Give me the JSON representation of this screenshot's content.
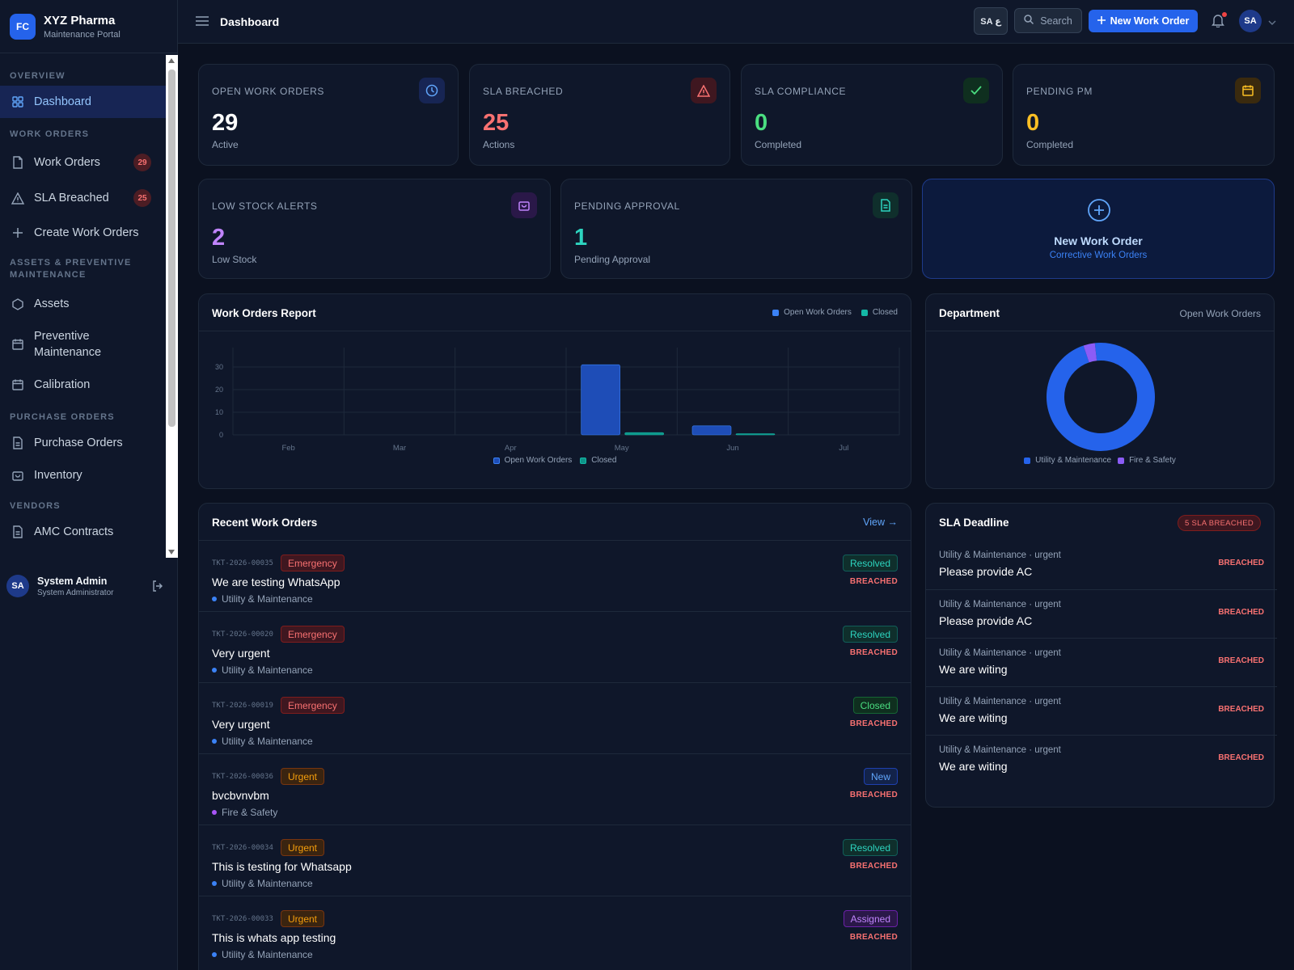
{
  "brand": {
    "logo": "FC",
    "name": "XYZ Pharma",
    "subtitle": "Maintenance Portal"
  },
  "sidebar": {
    "sections": {
      "overview": "OVERVIEW",
      "work_orders": "WORK ORDERS",
      "assets_line1": "ASSETS & PREVENTIVE",
      "assets_line2": "MAINTENANCE",
      "purchase_orders": "PURCHASE ORDERS",
      "vendors": "VENDORS"
    },
    "items": {
      "dashboard": "Dashboard",
      "work_orders": "Work Orders",
      "work_orders_badge": "29",
      "sla_breached": "SLA Breached",
      "sla_breached_badge": "25",
      "create_work_orders": "Create Work Orders",
      "assets": "Assets",
      "preventive_line1": "Preventive",
      "preventive_line2": "Maintenance",
      "calibration": "Calibration",
      "purchase_orders": "Purchase Orders",
      "inventory": "Inventory",
      "amc_contracts": "AMC Contracts"
    },
    "user": {
      "initials": "SA",
      "name": "System Admin",
      "role": "System Administrator"
    }
  },
  "header": {
    "title": "Dashboard",
    "lang": "SA ع",
    "search": "Search",
    "new_work_order": "New Work Order",
    "avatar": "SA"
  },
  "stats": {
    "open_work_orders": {
      "label": "OPEN WORK ORDERS",
      "value": "29",
      "sub": "Active",
      "color": "#ffffff"
    },
    "sla_breached": {
      "label": "SLA BREACHED",
      "value": "25",
      "sub": "Actions",
      "color": "#f87171"
    },
    "sla_compliance": {
      "label": "SLA COMPLIANCE",
      "value": "0",
      "sub": "Completed",
      "color": "#4ade80"
    },
    "pending_pm": {
      "label": "PENDING PM",
      "value": "0",
      "sub": "Completed",
      "color": "#fbbf24"
    },
    "low_stock": {
      "label": "LOW STOCK ALERTS",
      "value": "2",
      "sub": "Low Stock",
      "color": "#c084fc"
    },
    "pending_approval": {
      "label": "PENDING APPROVAL",
      "value": "1",
      "sub": "Pending Approval",
      "color": "#2dd4bf"
    }
  },
  "quick_action": {
    "title": "New Work Order",
    "subtitle": "Corrective Work Orders"
  },
  "report": {
    "title": "Work Orders Report",
    "legend_open": "Open Work Orders",
    "legend_closed": "Closed"
  },
  "chart_data": [
    {
      "type": "bar",
      "title": "Work Orders Report",
      "categories": [
        "Feb",
        "Mar",
        "Apr",
        "May",
        "Jun",
        "Jul"
      ],
      "series": [
        {
          "name": "Open Work Orders",
          "values": [
            0,
            0,
            0,
            31,
            4,
            0
          ],
          "color": "#1e4db7"
        },
        {
          "name": "Closed",
          "values": [
            0,
            0,
            0,
            1,
            0.5,
            0
          ],
          "color": "#0d9488"
        }
      ],
      "yticks": [
        0,
        10,
        20,
        30
      ],
      "ylim": [
        0,
        35
      ],
      "grid": true,
      "legend": "top-right and bottom"
    },
    {
      "type": "pie",
      "title": "Department",
      "subtitle": "Open Work Orders",
      "categories": [
        "Utility & Maintenance",
        "Fire & Safety"
      ],
      "values": [
        28,
        1
      ],
      "colors": [
        "#2563eb",
        "#8b5cf6"
      ],
      "legend": "bottom"
    }
  ],
  "department": {
    "title": "Department",
    "subtitle": "Open Work Orders"
  },
  "recent": {
    "title": "Recent Work Orders",
    "view": "View →",
    "rows": [
      {
        "id": "TKT-2026-00035",
        "priority": "Emergency",
        "title": "We are testing WhatsApp",
        "dept": "Utility & Maintenance",
        "status": "Resolved",
        "breach": "BREACHED"
      },
      {
        "id": "TKT-2026-00020",
        "priority": "Emergency",
        "title": "Very urgent",
        "dept": "Utility & Maintenance",
        "status": "Resolved",
        "breach": "BREACHED"
      },
      {
        "id": "TKT-2026-00019",
        "priority": "Emergency",
        "title": "Very urgent",
        "dept": "Utility & Maintenance",
        "status": "Closed",
        "breach": "BREACHED"
      },
      {
        "id": "TKT-2026-00036",
        "priority": "Urgent",
        "title": "bvcbvnvbm",
        "dept": "Fire & Safety",
        "status": "New",
        "breach": "BREACHED"
      },
      {
        "id": "TKT-2026-00034",
        "priority": "Urgent",
        "title": "This is testing for Whatsapp",
        "dept": "Utility & Maintenance",
        "status": "Resolved",
        "breach": "BREACHED"
      },
      {
        "id": "TKT-2026-00033",
        "priority": "Urgent",
        "title": "This is whats app testing",
        "dept": "Utility & Maintenance",
        "status": "Assigned",
        "breach": "BREACHED"
      }
    ]
  },
  "sla": {
    "title": "SLA Deadline",
    "pill": "5 SLA BREACHED",
    "rows": [
      {
        "meta": "Utility & Maintenance · urgent",
        "title": "Please provide AC",
        "breach": "BREACHED"
      },
      {
        "meta": "Utility & Maintenance · urgent",
        "title": "Please provide AC",
        "breach": "BREACHED"
      },
      {
        "meta": "Utility & Maintenance · urgent",
        "title": "We are witing",
        "breach": "BREACHED"
      },
      {
        "meta": "Utility & Maintenance · urgent",
        "title": "We are witing",
        "breach": "BREACHED"
      },
      {
        "meta": "Utility & Maintenance · urgent",
        "title": "We are witing",
        "breach": "BREACHED"
      }
    ]
  }
}
